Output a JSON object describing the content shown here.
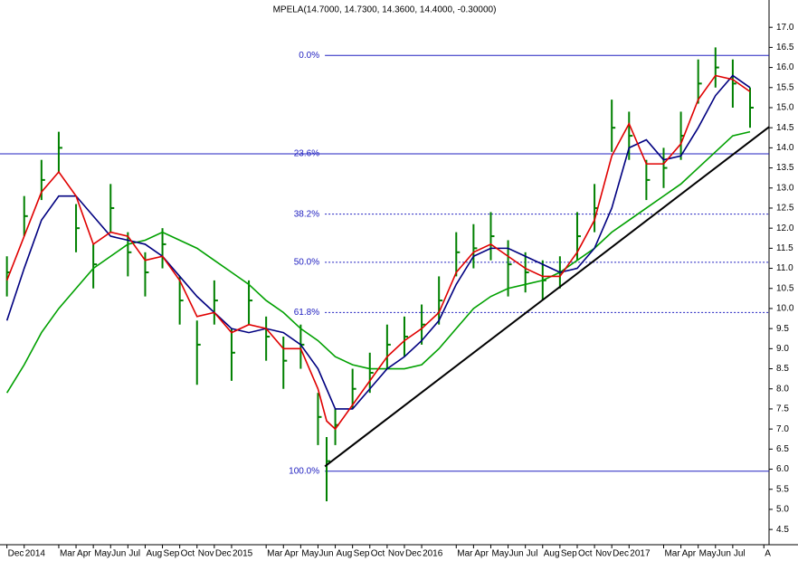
{
  "chart_data": {
    "type": "stock",
    "title": "MPELA(14.7000, 14.7300, 14.3600, 14.4000, -0.30000)",
    "x": [
      0,
      1,
      2,
      3,
      4,
      5,
      6,
      7,
      8,
      9,
      10,
      11,
      12,
      13,
      14,
      15,
      16,
      17,
      18,
      18.5,
      19,
      20,
      21,
      22,
      23,
      24,
      25,
      26,
      27,
      28,
      29,
      30,
      31,
      32,
      33,
      34,
      35,
      36,
      37,
      38,
      39,
      40,
      41,
      42,
      43
    ],
    "price": {
      "color": "#008000",
      "high": [
        11.3,
        12.8,
        13.7,
        14.4,
        12.6,
        11.6,
        13.1,
        11.9,
        11.4,
        12.0,
        10.8,
        9.7,
        10.7,
        9.5,
        10.7,
        9.8,
        9.3,
        9.6,
        7.9,
        6.8,
        7.5,
        8.5,
        8.9,
        9.6,
        9.8,
        10.1,
        10.8,
        11.9,
        12.1,
        12.4,
        11.7,
        11.4,
        11.2,
        11.3,
        12.4,
        13.1,
        15.2,
        14.9,
        13.7,
        14.0,
        14.9,
        16.2,
        16.5,
        16.2,
        15.5
      ],
      "low": [
        10.3,
        11.8,
        12.7,
        13.4,
        11.4,
        10.5,
        11.9,
        10.8,
        10.3,
        11.0,
        9.6,
        8.1,
        9.6,
        8.2,
        9.6,
        8.7,
        8.0,
        8.5,
        6.6,
        5.2,
        6.6,
        7.5,
        7.9,
        8.5,
        8.8,
        9.1,
        9.6,
        10.8,
        11.0,
        11.2,
        10.3,
        10.4,
        10.2,
        10.5,
        11.2,
        11.9,
        13.9,
        13.7,
        12.7,
        13.0,
        13.7,
        15.1,
        15.5,
        15.0,
        14.5
      ],
      "close": [
        10.9,
        12.3,
        13.2,
        14.0,
        12.0,
        11.1,
        12.5,
        11.4,
        10.9,
        11.6,
        10.2,
        9.1,
        10.2,
        8.9,
        10.2,
        9.3,
        8.7,
        9.1,
        7.3,
        6.2,
        7.1,
        8.0,
        8.4,
        9.1,
        9.3,
        9.6,
        10.2,
        11.4,
        11.5,
        11.8,
        11.1,
        10.9,
        10.7,
        10.9,
        11.8,
        12.5,
        14.5,
        14.3,
        13.2,
        13.5,
        14.3,
        15.6,
        16.0,
        15.6,
        15.0
      ]
    },
    "series": [
      {
        "color": "#00a000",
        "values": [
          7.9,
          8.6,
          9.4,
          10.0,
          10.5,
          11.0,
          11.3,
          11.6,
          11.7,
          11.9,
          11.7,
          11.5,
          11.2,
          10.9,
          10.6,
          10.2,
          9.9,
          9.5,
          9.2,
          9.0,
          8.8,
          8.6,
          8.5,
          8.5,
          8.5,
          8.6,
          9.0,
          9.5,
          10.0,
          10.3,
          10.5,
          10.6,
          10.7,
          10.9,
          11.2,
          11.5,
          11.9,
          12.2,
          12.5,
          12.8,
          13.1,
          13.5,
          13.9,
          14.3,
          14.4
        ]
      },
      {
        "color": "#000080",
        "values": [
          9.7,
          11.0,
          12.2,
          12.8,
          12.8,
          12.3,
          11.8,
          11.7,
          11.6,
          11.3,
          10.8,
          10.3,
          9.9,
          9.5,
          9.4,
          9.5,
          9.4,
          9.1,
          8.5,
          8.0,
          7.5,
          7.5,
          8.0,
          8.5,
          8.8,
          9.2,
          9.7,
          10.6,
          11.3,
          11.5,
          11.5,
          11.3,
          11.1,
          10.9,
          11.0,
          11.5,
          12.5,
          14.0,
          14.2,
          13.7,
          13.8,
          14.5,
          15.3,
          15.8,
          15.5
        ]
      },
      {
        "color": "#e00000",
        "values": [
          10.7,
          11.8,
          12.9,
          13.4,
          12.8,
          11.6,
          11.9,
          11.8,
          11.2,
          11.3,
          10.7,
          9.8,
          9.9,
          9.4,
          9.6,
          9.5,
          9.0,
          9.0,
          8.0,
          7.2,
          7.0,
          7.6,
          8.2,
          8.8,
          9.2,
          9.5,
          9.9,
          10.9,
          11.4,
          11.6,
          11.3,
          11.0,
          10.8,
          10.8,
          11.4,
          12.2,
          13.8,
          14.6,
          13.6,
          13.6,
          14.1,
          15.2,
          15.8,
          15.7,
          15.4
        ]
      }
    ],
    "trendline": {
      "color": "#000000",
      "x": [
        18.4,
        44.1
      ],
      "values": [
        6.07,
        14.52
      ]
    },
    "fib_start": 18.4,
    "fib_color": "#2020c0",
    "fib_levels": [
      {
        "label": "0.0%",
        "value": 16.3,
        "style": "solid",
        "full": false
      },
      {
        "label": "23.6%",
        "value": 13.85,
        "style": "solid",
        "full": true
      },
      {
        "label": "38.2%",
        "value": 12.35,
        "style": "dotted",
        "full": false
      },
      {
        "label": "50.0%",
        "value": 11.15,
        "style": "dotted",
        "full": false
      },
      {
        "label": "61.8%",
        "value": 9.9,
        "style": "dotted",
        "full": false
      },
      {
        "label": "100.0%",
        "value": 5.95,
        "style": "solid",
        "full": false
      }
    ],
    "xlim": [
      -0.4,
      44.1
    ],
    "ylim": [
      4.12,
      17.68
    ],
    "yticks": [
      {
        "value": 4.5,
        "label": "4.5"
      },
      {
        "value": 5,
        "label": "5.0"
      },
      {
        "value": 5.5,
        "label": "5.5"
      },
      {
        "value": 6,
        "label": "6.0"
      },
      {
        "value": 6.5,
        "label": "6.5"
      },
      {
        "value": 7,
        "label": "7.0"
      },
      {
        "value": 7.5,
        "label": "7.5"
      },
      {
        "value": 8,
        "label": "8.0"
      },
      {
        "value": 8.5,
        "label": "8.5"
      },
      {
        "value": 9,
        "label": "9.0"
      },
      {
        "value": 9.5,
        "label": "9.5"
      },
      {
        "value": 10,
        "label": "10.0"
      },
      {
        "value": 10.5,
        "label": "10.5"
      },
      {
        "value": 11,
        "label": "11.0"
      },
      {
        "value": 11.5,
        "label": "11.5"
      },
      {
        "value": 12,
        "label": "12.0"
      },
      {
        "value": 12.5,
        "label": "12.5"
      },
      {
        "value": 13,
        "label": "13.0"
      },
      {
        "value": 13.5,
        "label": "13.5"
      },
      {
        "value": 14,
        "label": "14.0"
      },
      {
        "value": 14.5,
        "label": "14.5"
      },
      {
        "value": 15,
        "label": "15.0"
      },
      {
        "value": 15.5,
        "label": "15.5"
      },
      {
        "value": 16,
        "label": "16.0"
      },
      {
        "value": 16.5,
        "label": "16.5"
      },
      {
        "value": 17,
        "label": "17.0"
      }
    ],
    "xticks": [
      {
        "value": 0,
        "label": "Dec"
      },
      {
        "value": 1,
        "label": "2014"
      },
      {
        "value": 3,
        "label": "Mar"
      },
      {
        "value": 4,
        "label": "Apr"
      },
      {
        "value": 5,
        "label": "May"
      },
      {
        "value": 6,
        "label": "Jun"
      },
      {
        "value": 7,
        "label": "Jul"
      },
      {
        "value": 8,
        "label": "Aug"
      },
      {
        "value": 9,
        "label": "Sep"
      },
      {
        "value": 10,
        "label": "Oct"
      },
      {
        "value": 11,
        "label": "Nov"
      },
      {
        "value": 12,
        "label": "Dec"
      },
      {
        "value": 13,
        "label": "2015"
      },
      {
        "value": 15,
        "label": "Mar"
      },
      {
        "value": 16,
        "label": "Apr"
      },
      {
        "value": 17,
        "label": "May"
      },
      {
        "value": 18,
        "label": "Jun"
      },
      {
        "value": 19,
        "label": "Aug"
      },
      {
        "value": 20,
        "label": "Sep"
      },
      {
        "value": 21,
        "label": "Oct"
      },
      {
        "value": 22,
        "label": "Nov"
      },
      {
        "value": 23,
        "label": "Dec"
      },
      {
        "value": 24,
        "label": "2016"
      },
      {
        "value": 26,
        "label": "Mar"
      },
      {
        "value": 27,
        "label": "Apr"
      },
      {
        "value": 28,
        "label": "May"
      },
      {
        "value": 29,
        "label": "Jun"
      },
      {
        "value": 30,
        "label": "Jul"
      },
      {
        "value": 31,
        "label": "Aug"
      },
      {
        "value": 32,
        "label": "Sep"
      },
      {
        "value": 33,
        "label": "Oct"
      },
      {
        "value": 34,
        "label": "Nov"
      },
      {
        "value": 35,
        "label": "Dec"
      },
      {
        "value": 36,
        "label": "2017"
      },
      {
        "value": 38,
        "label": "Mar"
      },
      {
        "value": 39,
        "label": "Apr"
      },
      {
        "value": 40,
        "label": "May"
      },
      {
        "value": 41,
        "label": "Jun"
      },
      {
        "value": 42,
        "label": "Jul"
      },
      {
        "value": 43.8,
        "label": "A"
      }
    ]
  }
}
